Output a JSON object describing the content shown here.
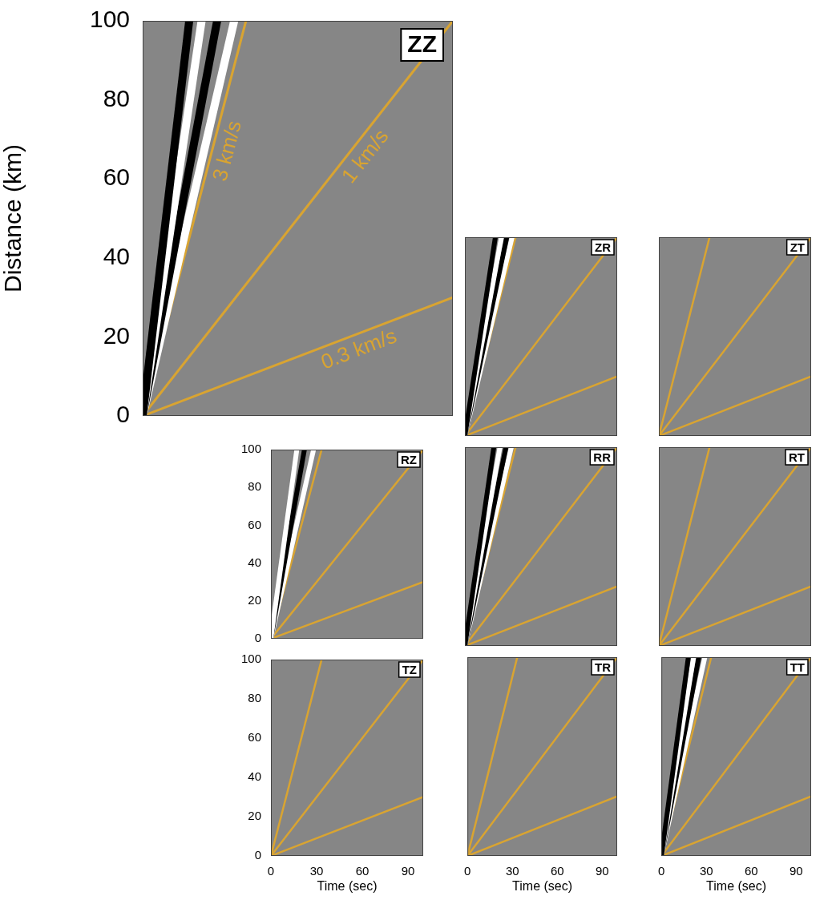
{
  "chart_data": [
    {
      "type": "line",
      "title": "ZZ",
      "y_label": "Distance (km)",
      "xlim": [
        0,
        100
      ],
      "ylim": [
        0,
        100
      ],
      "yticks": [
        0,
        20,
        40,
        60,
        80,
        100
      ],
      "tick_labels": "y",
      "grid": false,
      "wavefronts": [
        {
          "color": "#000000",
          "x": [
            0,
            15
          ],
          "values": [
            0,
            100
          ]
        },
        {
          "color": "#ffffff",
          "x": [
            0,
            19
          ],
          "values": [
            0,
            100
          ]
        },
        {
          "color": "#000000",
          "x": [
            0,
            24
          ],
          "values": [
            0,
            100
          ]
        },
        {
          "color": "#ffffff",
          "x": [
            0,
            29.5
          ],
          "values": [
            0,
            100
          ]
        }
      ],
      "series": [
        {
          "name": "3 km/s",
          "color": "#d9a431",
          "x": [
            0,
            33.3
          ],
          "values": [
            0,
            100
          ]
        },
        {
          "name": "1 km/s",
          "color": "#d9a431",
          "x": [
            0,
            100
          ],
          "values": [
            0,
            100
          ]
        },
        {
          "name": "0.3 km/s",
          "color": "#d9a431",
          "x": [
            0,
            100
          ],
          "values": [
            0,
            30
          ]
        }
      ]
    },
    {
      "type": "line",
      "title": "ZR",
      "xlim": [
        0,
        100
      ],
      "ylim": [
        0,
        100
      ],
      "tick_labels": false,
      "grid": false,
      "wavefronts": [
        {
          "color": "#000000",
          "x": [
            0,
            20
          ],
          "values": [
            0,
            100
          ]
        },
        {
          "color": "#ffffff",
          "x": [
            0,
            24
          ],
          "values": [
            0,
            100
          ]
        },
        {
          "color": "#000000",
          "x": [
            0,
            27.5
          ],
          "values": [
            0,
            100
          ]
        },
        {
          "color": "#ffffff",
          "x": [
            0,
            31
          ],
          "values": [
            0,
            100
          ]
        }
      ],
      "series": [
        {
          "color": "#d9a431",
          "x": [
            0,
            33.3
          ],
          "values": [
            0,
            100
          ]
        },
        {
          "color": "#d9a431",
          "x": [
            0,
            100
          ],
          "values": [
            0,
            100
          ]
        },
        {
          "color": "#d9a431",
          "x": [
            0,
            100
          ],
          "values": [
            0,
            30
          ]
        }
      ]
    },
    {
      "type": "line",
      "title": "ZT",
      "xlim": [
        0,
        100
      ],
      "ylim": [
        0,
        100
      ],
      "tick_labels": false,
      "grid": false,
      "series": [
        {
          "color": "#d9a431",
          "x": [
            0,
            33.3
          ],
          "values": [
            0,
            100
          ]
        },
        {
          "color": "#d9a431",
          "x": [
            0,
            100
          ],
          "values": [
            0,
            100
          ]
        },
        {
          "color": "#d9a431",
          "x": [
            0,
            100
          ],
          "values": [
            0,
            30
          ]
        }
      ]
    },
    {
      "type": "line",
      "title": "RZ",
      "xlim": [
        0,
        100
      ],
      "ylim": [
        0,
        100
      ],
      "yticks": [
        0,
        20,
        40,
        60,
        80,
        100
      ],
      "tick_labels": "y",
      "grid": false,
      "wavefronts": [
        {
          "color": "#ffffff",
          "x": [
            0,
            17
          ],
          "values": [
            0,
            100
          ]
        },
        {
          "color": "#000000",
          "x": [
            0,
            22
          ],
          "values": [
            0,
            100
          ]
        },
        {
          "color": "#ffffff",
          "x": [
            0,
            28
          ],
          "values": [
            0,
            100
          ]
        }
      ],
      "series": [
        {
          "color": "#d9a431",
          "x": [
            0,
            33.3
          ],
          "values": [
            0,
            100
          ]
        },
        {
          "color": "#d9a431",
          "x": [
            0,
            100
          ],
          "values": [
            0,
            100
          ]
        },
        {
          "color": "#d9a431",
          "x": [
            0,
            100
          ],
          "values": [
            0,
            30
          ]
        }
      ]
    },
    {
      "type": "line",
      "title": "RR",
      "xlim": [
        0,
        100
      ],
      "ylim": [
        0,
        100
      ],
      "tick_labels": false,
      "grid": false,
      "wavefronts": [
        {
          "color": "#000000",
          "x": [
            0,
            19
          ],
          "values": [
            0,
            100
          ]
        },
        {
          "color": "#ffffff",
          "x": [
            0,
            23
          ],
          "values": [
            0,
            100
          ]
        },
        {
          "color": "#000000",
          "x": [
            0,
            27
          ],
          "values": [
            0,
            100
          ]
        },
        {
          "color": "#ffffff",
          "x": [
            0,
            30.5
          ],
          "values": [
            0,
            100
          ]
        }
      ],
      "series": [
        {
          "color": "#d9a431",
          "x": [
            0,
            33.3
          ],
          "values": [
            0,
            100
          ]
        },
        {
          "color": "#d9a431",
          "x": [
            0,
            100
          ],
          "values": [
            0,
            100
          ]
        },
        {
          "color": "#d9a431",
          "x": [
            0,
            100
          ],
          "values": [
            0,
            30
          ]
        }
      ]
    },
    {
      "type": "line",
      "title": "RT",
      "xlim": [
        0,
        100
      ],
      "ylim": [
        0,
        100
      ],
      "tick_labels": false,
      "grid": false,
      "series": [
        {
          "color": "#d9a431",
          "x": [
            0,
            33.3
          ],
          "values": [
            0,
            100
          ]
        },
        {
          "color": "#d9a431",
          "x": [
            0,
            100
          ],
          "values": [
            0,
            100
          ]
        },
        {
          "color": "#d9a431",
          "x": [
            0,
            100
          ],
          "values": [
            0,
            30
          ]
        }
      ]
    },
    {
      "type": "line",
      "title": "TZ",
      "x_label": "Time (sec)",
      "xlim": [
        0,
        100
      ],
      "ylim": [
        0,
        100
      ],
      "xticks": [
        0,
        30,
        60,
        90
      ],
      "yticks": [
        0,
        20,
        40,
        60,
        80,
        100
      ],
      "tick_labels": true,
      "grid": false,
      "series": [
        {
          "color": "#d9a431",
          "x": [
            0,
            33.3
          ],
          "values": [
            0,
            100
          ]
        },
        {
          "color": "#d9a431",
          "x": [
            0,
            100
          ],
          "values": [
            0,
            100
          ]
        },
        {
          "color": "#d9a431",
          "x": [
            0,
            100
          ],
          "values": [
            0,
            30
          ]
        }
      ]
    },
    {
      "type": "line",
      "title": "TR",
      "x_label": "Time (sec)",
      "xlim": [
        0,
        100
      ],
      "ylim": [
        0,
        100
      ],
      "xticks": [
        0,
        30,
        60,
        90
      ],
      "tick_labels": "x",
      "grid": false,
      "series": [
        {
          "color": "#d9a431",
          "x": [
            0,
            33.3
          ],
          "values": [
            0,
            100
          ]
        },
        {
          "color": "#d9a431",
          "x": [
            0,
            100
          ],
          "values": [
            0,
            100
          ]
        },
        {
          "color": "#d9a431",
          "x": [
            0,
            100
          ],
          "values": [
            0,
            30
          ]
        }
      ]
    },
    {
      "type": "line",
      "title": "TT",
      "x_label": "Time (sec)",
      "xlim": [
        0,
        100
      ],
      "ylim": [
        0,
        100
      ],
      "xticks": [
        0,
        30,
        60,
        90
      ],
      "tick_labels": "x",
      "grid": false,
      "wavefronts": [
        {
          "color": "#000000",
          "x": [
            0,
            18
          ],
          "values": [
            0,
            100
          ]
        },
        {
          "color": "#ffffff",
          "x": [
            0,
            21.5
          ],
          "values": [
            0,
            100
          ]
        },
        {
          "color": "#000000",
          "x": [
            0,
            25
          ],
          "values": [
            0,
            100
          ]
        },
        {
          "color": "#ffffff",
          "x": [
            0,
            29
          ],
          "values": [
            0,
            100
          ]
        }
      ],
      "series": [
        {
          "color": "#d9a431",
          "x": [
            0,
            33.3
          ],
          "values": [
            0,
            100
          ]
        },
        {
          "color": "#d9a431",
          "x": [
            0,
            100
          ],
          "values": [
            0,
            100
          ]
        },
        {
          "color": "#d9a431",
          "x": [
            0,
            100
          ],
          "values": [
            0,
            30
          ]
        }
      ]
    }
  ]
}
